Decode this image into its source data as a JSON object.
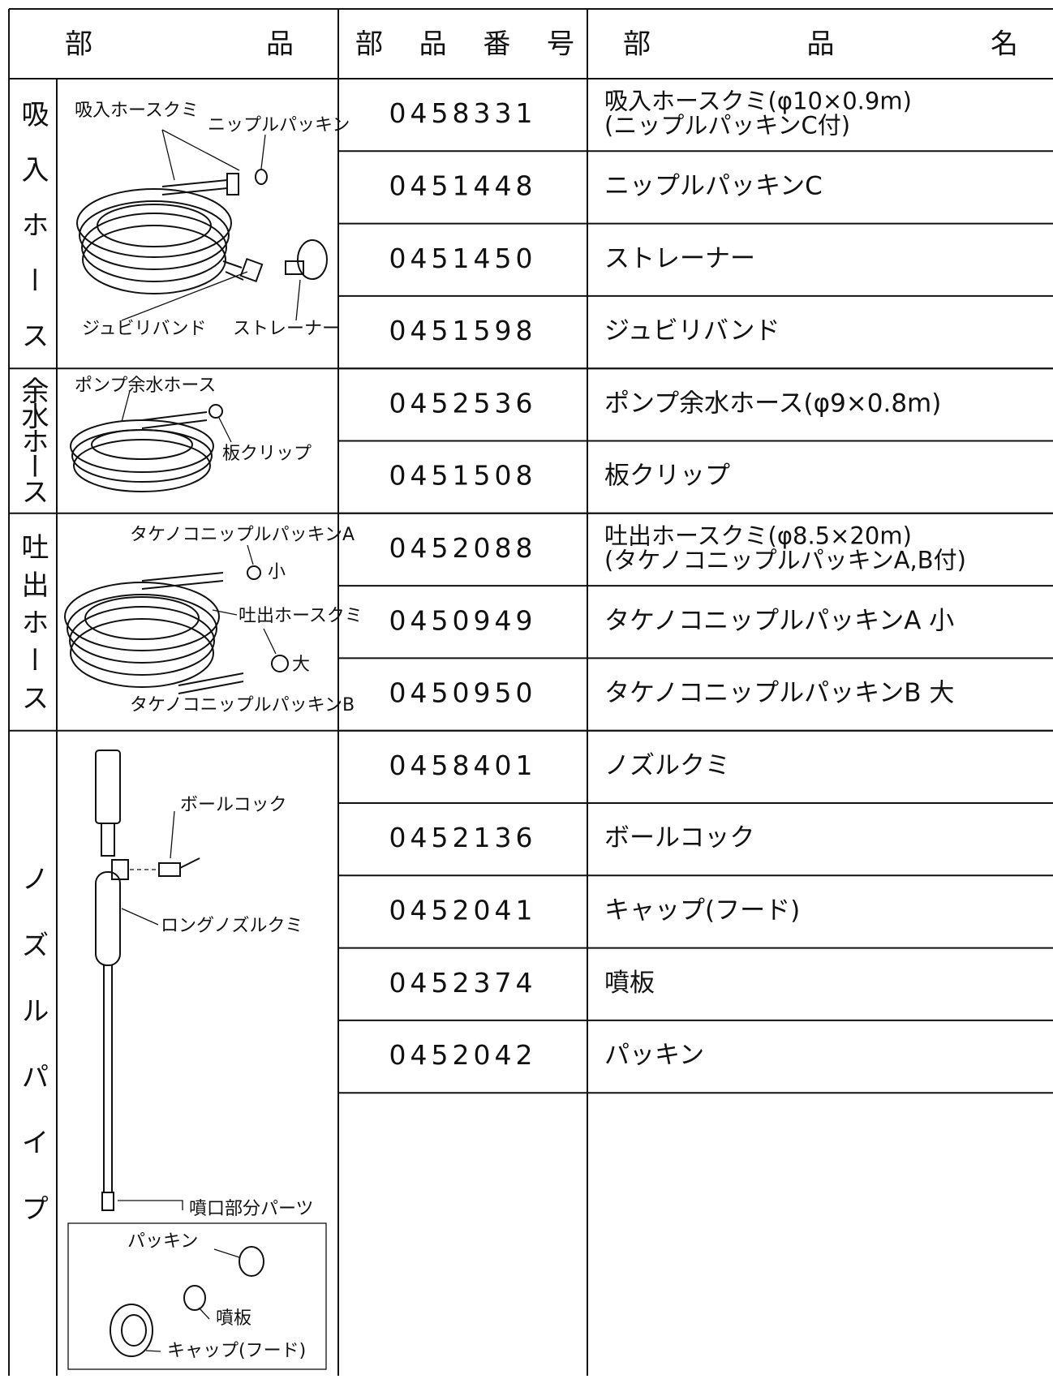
{
  "header": [
    "部品",
    "部品番号",
    "部品名"
  ],
  "groups": [
    {
      "label": "吸入ホース",
      "callouts": [
        "吸入ホースクミ",
        "ニップルパッキン",
        "ジュビリバンド",
        "ストレーナー"
      ],
      "rows": [
        {
          "number": "0458331",
          "name": [
            "吸入ホースクミ(φ10×0.9m)",
            "(ニップルパッキンC付)"
          ]
        },
        {
          "number": "0451448",
          "name": [
            "ニップルパッキンC"
          ]
        },
        {
          "number": "0451450",
          "name": [
            "ストレーナー"
          ]
        },
        {
          "number": "0451598",
          "name": [
            "ジュビリバンド"
          ]
        }
      ]
    },
    {
      "label": "余水ホース",
      "callouts": [
        "ポンプ余水ホース",
        "板クリップ"
      ],
      "rows": [
        {
          "number": "0452536",
          "name": [
            "ポンプ余水ホース(φ9×0.8m)"
          ]
        },
        {
          "number": "0451508",
          "name": [
            "板クリップ"
          ]
        }
      ]
    },
    {
      "label": "吐出ホース",
      "callouts": [
        "タケノコニップルパッキンA",
        "小",
        "吐出ホースクミ",
        "大",
        "タケノコニップルパッキンB"
      ],
      "rows": [
        {
          "number": "0452088",
          "name": [
            "吐出ホースクミ(φ8.5×20m)",
            "(タケノコニップルパッキンA,B付)"
          ]
        },
        {
          "number": "0450949",
          "name": [
            "タケノコニップルパッキンA 小"
          ]
        },
        {
          "number": "0450950",
          "name": [
            "タケノコニップルパッキンB 大"
          ]
        }
      ]
    },
    {
      "label": "ノズルパイプ",
      "callouts": [
        "ボールコック",
        "ロングノズルクミ",
        "噴口部分パーツ",
        "パッキン",
        "噴板",
        "キャップ(フード)"
      ],
      "rows": [
        {
          "number": "0458401",
          "name": [
            "ノズルクミ"
          ]
        },
        {
          "number": "0452136",
          "name": [
            "ボールコック"
          ]
        },
        {
          "number": "0452041",
          "name": [
            "キャップ(フード)"
          ]
        },
        {
          "number": "0452374",
          "name": [
            "噴板"
          ]
        },
        {
          "number": "0452042",
          "name": [
            "パッキン"
          ]
        }
      ]
    }
  ]
}
